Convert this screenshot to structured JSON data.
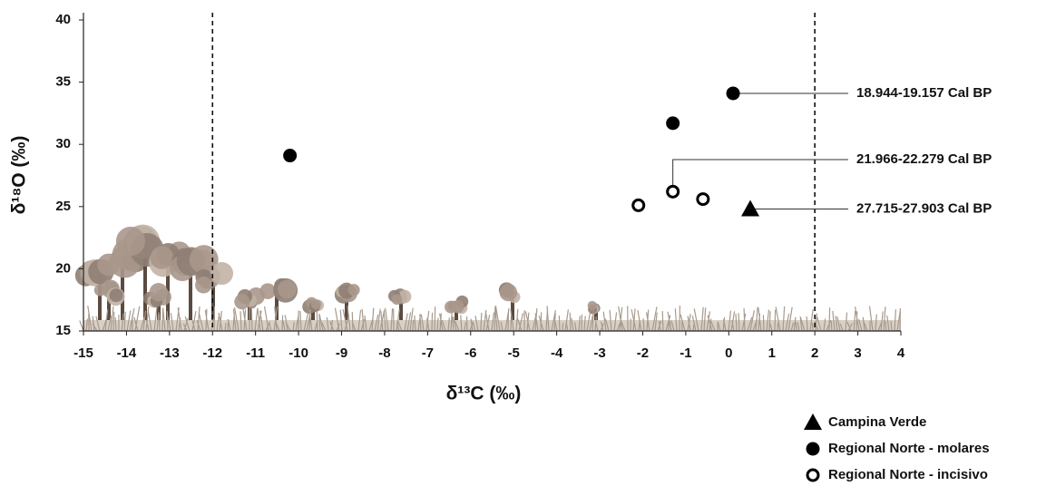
{
  "chart_data": {
    "type": "scatter",
    "x_label": "δ¹³C (‰)",
    "y_label": "δ¹⁸O (‰)",
    "xlim": [
      -15,
      4
    ],
    "xticks": [
      -15,
      -14,
      -13,
      -12,
      -11,
      -10,
      -9,
      -8,
      -7,
      -6,
      -5,
      -4,
      -3,
      -2,
      -1,
      0,
      1,
      2,
      3,
      4
    ],
    "ylim": [
      15,
      40
    ],
    "yticks": [
      15,
      20,
      25,
      30,
      35,
      40
    ],
    "vlines": [
      -12,
      2
    ],
    "series": [
      {
        "name": "Campina Verde",
        "color": "#000000",
        "marker": "triangle",
        "x": [
          0.5
        ],
        "values": [
          24.8
        ]
      },
      {
        "name": "Regional Norte - molares",
        "color": "#000000",
        "marker": "circle",
        "x": [
          -10.2,
          0.1,
          -1.3
        ],
        "values": [
          29.1,
          34.1,
          31.7
        ]
      },
      {
        "name": "Regional Norte - incisivo",
        "color": "#000000",
        "marker": "circle-open",
        "x": [
          -2.1,
          -1.3,
          -0.6
        ],
        "values": [
          25.1,
          26.2,
          25.6
        ]
      }
    ],
    "annotations": [
      {
        "text": "18.944-19.157 Cal BP",
        "x": 0.1,
        "y": 34.1
      },
      {
        "text": "21.966-22.279 Cal BP",
        "x": -1.3,
        "y": 26.2
      },
      {
        "text": "27.715-27.903 Cal BP",
        "x": 0.5,
        "y": 24.8
      }
    ]
  }
}
